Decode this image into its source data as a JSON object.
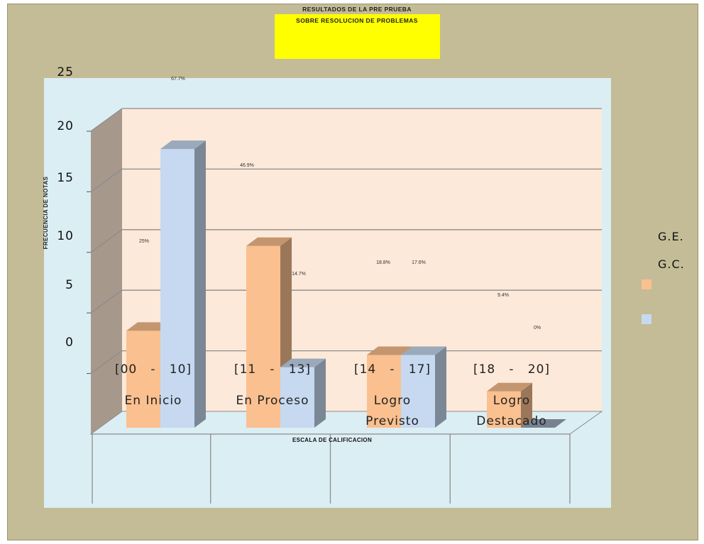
{
  "chart_data": {
    "type": "bar",
    "title_line1": "RESULTADOS  DE LA PRE PRUEBA",
    "title_line2": "SOBRE  RESOLUCION  DE  PROBLEMAS",
    "xlabel": "ESCALA  DE  CALIFICACION",
    "ylabel": "FRECUENCIA DE NOTAS",
    "ylim": [
      0,
      25
    ],
    "yticks": [
      "0",
      "5",
      "10",
      "15",
      "20",
      "25"
    ],
    "categories": [
      {
        "range": "[00   -   10]",
        "name": "En Inicio"
      },
      {
        "range": "[11   -   13]",
        "name": "En Proceso"
      },
      {
        "range": "[14   -   17]",
        "name": "Logro Previsto"
      },
      {
        "range": "[18   -   20]",
        "name": "Logro Destacado"
      }
    ],
    "series": [
      {
        "name": "G.E.",
        "color": "#fac08f",
        "values": [
          8,
          15,
          6,
          3
        ],
        "labels": [
          "25%",
          "46.9%",
          "18.8%",
          "9.4%"
        ]
      },
      {
        "name": "G.C.",
        "color": "#c6d9f1",
        "values": [
          23,
          5,
          6,
          0
        ],
        "labels": [
          "67.7%",
          "14.7%",
          "17.6%",
          "0%"
        ]
      }
    ],
    "grid": true,
    "legend": "right",
    "background": {
      "frame": "#c4bc96",
      "plot_area": "#dbeef4",
      "walls": "#fde9d9",
      "side_wall": "#a6998c",
      "yellow_box": "#ffff00"
    }
  }
}
